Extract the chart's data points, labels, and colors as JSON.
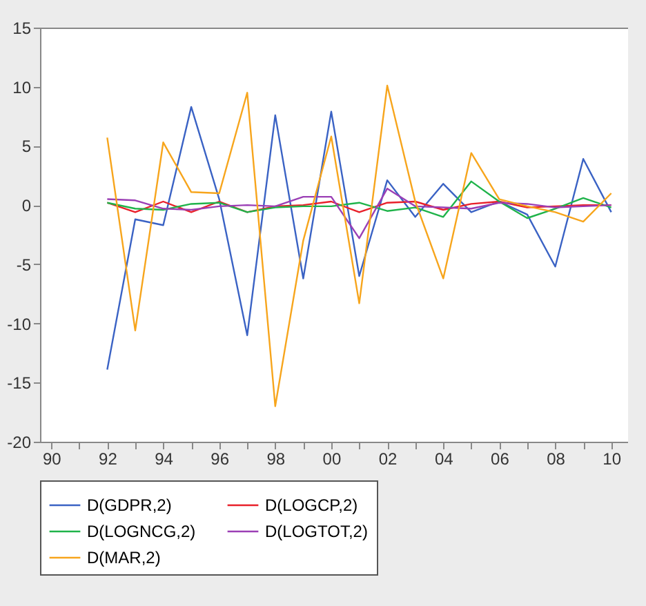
{
  "chart_data": {
    "type": "line",
    "x": [
      1992,
      1993,
      1994,
      1995,
      1996,
      1997,
      1998,
      1999,
      2000,
      2001,
      2002,
      2003,
      2004,
      2005,
      2006,
      2007,
      2008,
      2009,
      2010
    ],
    "series": [
      {
        "name": "D(GDPR,2)",
        "color": "#3a62c4",
        "values": [
          -13.9,
          -1.2,
          -1.7,
          8.3,
          0.5,
          -11.0,
          7.6,
          -6.2,
          7.9,
          -6.0,
          2.1,
          -1.0,
          1.8,
          -0.6,
          0.3,
          -0.8,
          -5.2,
          3.9,
          -0.6
        ]
      },
      {
        "name": "D(LOGCP,2)",
        "color": "#e8202a",
        "values": [
          0.2,
          -0.6,
          0.3,
          -0.6,
          0.3,
          -0.6,
          -0.1,
          0.0,
          0.3,
          -0.6,
          0.2,
          0.3,
          -0.4,
          0.1,
          0.3,
          -0.2,
          -0.1,
          0.0,
          0.0
        ]
      },
      {
        "name": "D(LOGNCG,2)",
        "color": "#1fb34a",
        "values": [
          0.2,
          -0.3,
          -0.4,
          0.1,
          0.2,
          -0.6,
          -0.2,
          -0.1,
          -0.1,
          0.2,
          -0.5,
          -0.2,
          -1.0,
          2.0,
          0.3,
          -1.1,
          -0.3,
          0.6,
          -0.2
        ]
      },
      {
        "name": "D(LOGTOT,2)",
        "color": "#9b3fb5",
        "values": [
          0.5,
          0.4,
          -0.3,
          -0.4,
          -0.1,
          0.0,
          -0.1,
          0.7,
          0.7,
          -2.8,
          1.4,
          -0.1,
          -0.2,
          -0.3,
          0.2,
          0.1,
          -0.2,
          -0.1,
          0.0
        ]
      },
      {
        "name": "D(MAR,2)",
        "color": "#f7a51c",
        "values": [
          5.7,
          -10.6,
          5.3,
          1.1,
          1.0,
          9.5,
          -17.0,
          -3.0,
          5.8,
          -8.3,
          10.1,
          0.3,
          -6.2,
          4.4,
          0.5,
          -0.1,
          -0.6,
          -1.4,
          1.0
        ]
      }
    ],
    "xlim": [
      1989.6,
      2010.6
    ],
    "xticks": [
      {
        "value": 1990,
        "label": "90"
      },
      {
        "value": 1991,
        "label": null
      },
      {
        "value": 1992,
        "label": "92"
      },
      {
        "value": 1993,
        "label": null
      },
      {
        "value": 1994,
        "label": "94"
      },
      {
        "value": 1995,
        "label": null
      },
      {
        "value": 1996,
        "label": "96"
      },
      {
        "value": 1997,
        "label": null
      },
      {
        "value": 1998,
        "label": "98"
      },
      {
        "value": 1999,
        "label": null
      },
      {
        "value": 2000,
        "label": "00"
      },
      {
        "value": 2001,
        "label": null
      },
      {
        "value": 2002,
        "label": "02"
      },
      {
        "value": 2003,
        "label": null
      },
      {
        "value": 2004,
        "label": "04"
      },
      {
        "value": 2005,
        "label": null
      },
      {
        "value": 2006,
        "label": "06"
      },
      {
        "value": 2007,
        "label": null
      },
      {
        "value": 2008,
        "label": "08"
      },
      {
        "value": 2009,
        "label": null
      },
      {
        "value": 2010,
        "label": "10"
      }
    ],
    "ylim": [
      -20,
      15
    ],
    "yticks": [
      -20,
      -15,
      -10,
      -5,
      0,
      5,
      10,
      15
    ],
    "legend": "bottom",
    "line_style": "solid"
  }
}
